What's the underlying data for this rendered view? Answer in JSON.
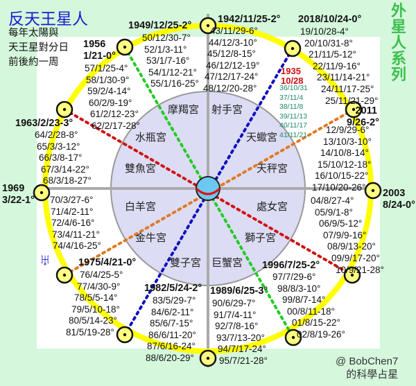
{
  "title": "反天王星人",
  "subtitle": [
    "每年太陽與",
    "天王星對分日",
    "前後約一周"
  ],
  "series_label": "外星人系列",
  "signature": [
    "@ BobChen7",
    "的科學占星"
  ],
  "uranus_symbol": "♅",
  "colors": {
    "background": "#d5f7dc",
    "orbit": "#ffff00",
    "inner_disc": "#dcdcf4",
    "title": "#1a1ad0",
    "series": "#3cbf4c",
    "green_line": "#22cc22",
    "red_line": "#d01010",
    "blue_line": "#1010c0",
    "orange_line": "#e07a20"
  },
  "zodiac": [
    "摩羯宮",
    "射手宮",
    "水瓶宮",
    "天蠍宮",
    "雙魚宮",
    "天秤宮",
    "白羊宮",
    "處女宮",
    "金牛宮",
    "獅子宮",
    "雙子宮",
    "巨蟹宮"
  ],
  "groups": [
    {
      "header": [
        "1949/12/25-2°"
      ],
      "lines": [
        "50/12/30-7°",
        "52/1/3-11°",
        "53/1/7-16°",
        "54/1/12-21°",
        "55/1/16-25°"
      ]
    },
    {
      "header": [
        "1942/11/25-2°"
      ],
      "lines": [
        "43/11/29-6°",
        "44/12/3-10°",
        "45/12/8-15°",
        "46/12/12-19°",
        "47/12/17-24°",
        "48/12/20-28°"
      ]
    },
    {
      "header": [
        "1956",
        "1/21-0°"
      ],
      "lines": [
        "57/1/25-4°",
        "58/1/30-9°",
        "59/2/4-14°",
        "60/2/9-19°",
        "61/2/12-23°",
        "62/2/17-28°"
      ]
    },
    {
      "header": [
        "2018/10/24-0°"
      ],
      "lines": [
        "19/10/28-4°",
        "20/10/31-8°",
        "21/11/5-12°",
        "22/11/9-16°",
        "23/11/14-21°",
        "24/11/17-25°",
        "25/11/21-29°"
      ]
    },
    {
      "header": [
        "1935",
        "10/28"
      ],
      "lines": [
        "36/10/31",
        "37/11/4",
        "38/11/8",
        "39/11/13",
        "40/11/17",
        "41/11/21"
      ]
    },
    {
      "header": [
        "2011",
        "9/26-2°"
      ],
      "lines": [
        "12/9/29-6°",
        "13/10/3-10°",
        "14/10/8-14°",
        "15/10/12-18°",
        "16/10/15-22°",
        "17/10/20-26°"
      ]
    },
    {
      "header": [
        "1963/2/23-3°"
      ],
      "lines": [
        "64/2/28-8°",
        "65/3/3-12°",
        "66/3/8-17°",
        "67/3/14-22°",
        "68/3/18-27°"
      ]
    },
    {
      "header": [
        "1969",
        "3/22-1°"
      ],
      "lines": [
        "70/3/27-6°",
        "71/4/2-11°",
        "72/4/6-16°",
        "73/4/11-21°",
        "74/4/16-25°"
      ]
    },
    {
      "header": [
        "1975/4/21-0°"
      ],
      "lines": [
        "76/4/25-5°",
        "77/4/30-9°",
        "78/5/5-14°",
        "79/5/10-18°",
        "80/5/14-23°",
        "81/5/19-28°"
      ]
    },
    {
      "header": [
        "1982/5/24-2°"
      ],
      "lines": [
        "83/5/29-7°",
        "84/6/2-11°",
        "85/6/7-15°",
        "86/6/11-20°",
        "87/6/16-24°",
        "88/6/20-29°"
      ]
    },
    {
      "header": [
        "1989/6/25-3°"
      ],
      "lines": [
        "90/6/29-7°",
        "91/7/4-11°",
        "92/7/8-16°",
        "93/7/13-20°",
        "94/7/17-24°",
        "95/7/21-28°"
      ]
    },
    {
      "header": [
        "1996/7/25-2°"
      ],
      "lines": [
        "97/7/29-6°",
        "98/8/3-10°",
        "99/8/7-14°",
        "00/8/11-18°",
        "01/8/15-22°",
        "02/8/19-26°"
      ]
    },
    {
      "header": [
        "2003",
        "8/24-0°"
      ],
      "lines": [
        "04/8/27-4°",
        "05/9/1-8°",
        "06/9/5-12°",
        "07/9/9-16°",
        "08/9/13-20°",
        "09/9/17-20°",
        "10/9/21-28°"
      ]
    }
  ]
}
